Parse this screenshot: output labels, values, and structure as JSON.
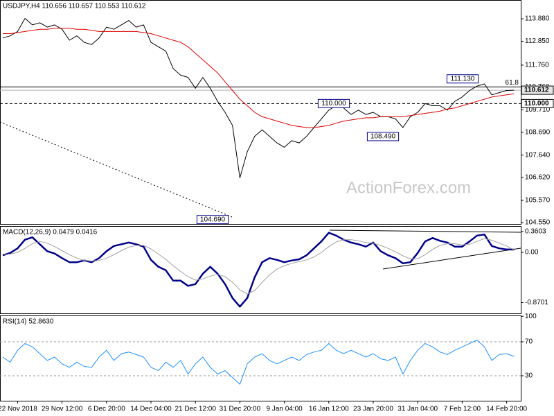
{
  "chart_data": [
    {
      "type": "line",
      "title": "USDJPY,H4  110.656 110.657 110.553 110.612",
      "series": [
        {
          "color": "#000000",
          "values": [
            113.0,
            113.1,
            113.3,
            113.9,
            113.6,
            113.7,
            113.5,
            113.6,
            113.4,
            112.9,
            113.1,
            112.8,
            112.7,
            113.0,
            113.5,
            113.4,
            113.6,
            113.8,
            113.5,
            113.6,
            112.8,
            112.6,
            112.4,
            111.6,
            111.3,
            111.2,
            110.7,
            111.2,
            110.7,
            110.1,
            109.6,
            109.0,
            106.6,
            107.8,
            108.5,
            108.8,
            108.5,
            108.2,
            108.0,
            108.3,
            108.2,
            108.5,
            108.9,
            109.3,
            109.7,
            109.9,
            109.8,
            109.5,
            109.7,
            109.5,
            109.6,
            109.4,
            109.4,
            109.3,
            108.9,
            109.4,
            109.6,
            110.0,
            109.9,
            109.9,
            109.7,
            110.1,
            110.3,
            110.6,
            110.8,
            110.9,
            110.4,
            110.5,
            110.6,
            110.612
          ]
        },
        {
          "color": "#e00000",
          "values": [
            113.2,
            113.2,
            113.25,
            113.3,
            113.35,
            113.4,
            113.4,
            113.45,
            113.45,
            113.45,
            113.4,
            113.4,
            113.35,
            113.3,
            113.3,
            113.3,
            113.3,
            113.3,
            113.3,
            113.25,
            113.2,
            113.1,
            113.0,
            112.9,
            112.8,
            112.6,
            112.3,
            112.0,
            111.7,
            111.4,
            111.0,
            110.6,
            110.2,
            109.9,
            109.6,
            109.4,
            109.3,
            109.2,
            109.1,
            109.0,
            108.95,
            108.9,
            108.9,
            108.95,
            109.0,
            109.1,
            109.2,
            109.25,
            109.3,
            109.35,
            109.35,
            109.4,
            109.4,
            109.4,
            109.4,
            109.45,
            109.5,
            109.55,
            109.6,
            109.65,
            109.75,
            109.8,
            109.9,
            110.0,
            110.1,
            110.2,
            110.3,
            110.35,
            110.4,
            110.45
          ]
        }
      ],
      "ylim": [
        104.49,
        114.74
      ],
      "yticks": [
        {
          "value": 113.88,
          "label": "113.880"
        },
        {
          "value": 112.85,
          "label": "112.850"
        },
        {
          "value": 111.76,
          "label": "111.760"
        },
        {
          "value": 110.76,
          "label": "110.760"
        },
        {
          "value": 109.71,
          "label": "109.710"
        },
        {
          "value": 108.69,
          "label": "108.690"
        },
        {
          "value": 107.64,
          "label": "107.640"
        },
        {
          "value": 106.62,
          "label": "106.620"
        },
        {
          "value": 105.57,
          "label": "105.570"
        },
        {
          "value": 104.55,
          "label": "104.550"
        }
      ],
      "levels": [
        {
          "value": 110.76,
          "label": "61.8",
          "style": "solid"
        },
        {
          "value": 110.0,
          "label": "110.000",
          "style": "dashed"
        }
      ],
      "last_price": {
        "value": 110.612,
        "label": "110.612"
      },
      "annotations": [
        {
          "value": 111.13,
          "label": "111.130"
        },
        {
          "value": 110.0,
          "label": "110.000"
        },
        {
          "value": 108.49,
          "label": "108.490"
        },
        {
          "value": 104.69,
          "label": "104.690"
        }
      ],
      "watermark": "ActionForex.com"
    },
    {
      "type": "line",
      "title": "MACD(12,26,9) 0.0479 0.0416",
      "series": [
        {
          "color": "#00008b",
          "values": [
            -0.05,
            -0.01,
            0.07,
            0.22,
            0.26,
            0.14,
            0.02,
            -0.02,
            -0.1,
            -0.17,
            -0.17,
            -0.14,
            -0.17,
            -0.1,
            0.02,
            0.11,
            0.14,
            0.17,
            0.14,
            0.1,
            -0.13,
            -0.25,
            -0.31,
            -0.49,
            -0.49,
            -0.58,
            -0.55,
            -0.37,
            -0.25,
            -0.37,
            -0.55,
            -0.79,
            -0.94,
            -0.79,
            -0.43,
            -0.17,
            -0.1,
            -0.13,
            -0.17,
            -0.14,
            -0.12,
            -0.05,
            0.07,
            0.19,
            0.34,
            0.29,
            0.22,
            0.17,
            0.14,
            0.1,
            0.17,
            0.02,
            -0.05,
            -0.1,
            -0.19,
            -0.17,
            -0.01,
            0.19,
            0.25,
            0.2,
            0.17,
            0.1,
            0.1,
            0.19,
            0.29,
            0.31,
            0.11,
            0.07,
            0.05,
            0.0479
          ]
        },
        {
          "color": "#a0a0a0",
          "values": [
            -0.03,
            -0.03,
            0.0,
            0.07,
            0.15,
            0.19,
            0.16,
            0.1,
            0.03,
            -0.04,
            -0.1,
            -0.14,
            -0.15,
            -0.14,
            -0.1,
            -0.04,
            0.03,
            0.09,
            0.12,
            0.12,
            0.06,
            -0.03,
            -0.12,
            -0.23,
            -0.33,
            -0.42,
            -0.48,
            -0.46,
            -0.41,
            -0.38,
            -0.42,
            -0.52,
            -0.65,
            -0.72,
            -0.66,
            -0.52,
            -0.39,
            -0.29,
            -0.23,
            -0.19,
            -0.16,
            -0.13,
            -0.08,
            0.0,
            0.1,
            0.18,
            0.22,
            0.22,
            0.2,
            0.17,
            0.16,
            0.12,
            0.07,
            0.01,
            -0.06,
            -0.11,
            -0.11,
            -0.04,
            0.05,
            0.12,
            0.15,
            0.15,
            0.13,
            0.14,
            0.19,
            0.24,
            0.21,
            0.16,
            0.11,
            0.0416
          ]
        }
      ],
      "ylim": [
        -1.056,
        0.456
      ],
      "yticks": [
        0.3603,
        {
          "value": 0,
          "label": "0.00"
        },
        -0.8701
      ]
    },
    {
      "type": "line",
      "title": "RSI(14) 52.8630",
      "categories": [
        null,
        null,
        "22 Nov 2018",
        null,
        null,
        null,
        null,
        null,
        "29 Nov 12:00",
        null,
        null,
        null,
        null,
        null,
        "6 Dec 20:00",
        null,
        null,
        null,
        null,
        null,
        "14 Dec 04:00",
        null,
        null,
        null,
        null,
        null,
        "21 Dec 12:00",
        null,
        null,
        null,
        null,
        null,
        "31 Dec 20:00",
        null,
        null,
        null,
        null,
        null,
        "9 Jan 04:00",
        null,
        null,
        null,
        null,
        null,
        "16 Jan 12:00",
        null,
        null,
        null,
        null,
        null,
        "23 Jan 20:00",
        null,
        null,
        null,
        null,
        null,
        "31 Jan 04:00",
        null,
        null,
        null,
        null,
        null,
        "7 Feb 12:00",
        null,
        null,
        null,
        null,
        null,
        "14 Feb 20:00",
        null
      ],
      "series": [
        {
          "color": "#1e90ff",
          "values": [
            52,
            46,
            60,
            68,
            64,
            56,
            48,
            52,
            44,
            40,
            46,
            41,
            40,
            52,
            60,
            48,
            56,
            58,
            55,
            52,
            40,
            36,
            46,
            40,
            48,
            32,
            44,
            52,
            40,
            32,
            36,
            28,
            20,
            44,
            52,
            56,
            48,
            44,
            48,
            52,
            48,
            55,
            58,
            60,
            68,
            60,
            56,
            60,
            56,
            52,
            56,
            50,
            48,
            52,
            32,
            48,
            60,
            68,
            64,
            58,
            55,
            60,
            64,
            68,
            72,
            64,
            48,
            55,
            56,
            52.863
          ]
        }
      ],
      "ylim": [
        0.6,
        101
      ],
      "yticks": [
        100,
        70,
        30
      ],
      "levels": [
        {
          "value": 70,
          "style": "dashed"
        },
        {
          "value": 30,
          "style": "dashed"
        }
      ]
    }
  ]
}
